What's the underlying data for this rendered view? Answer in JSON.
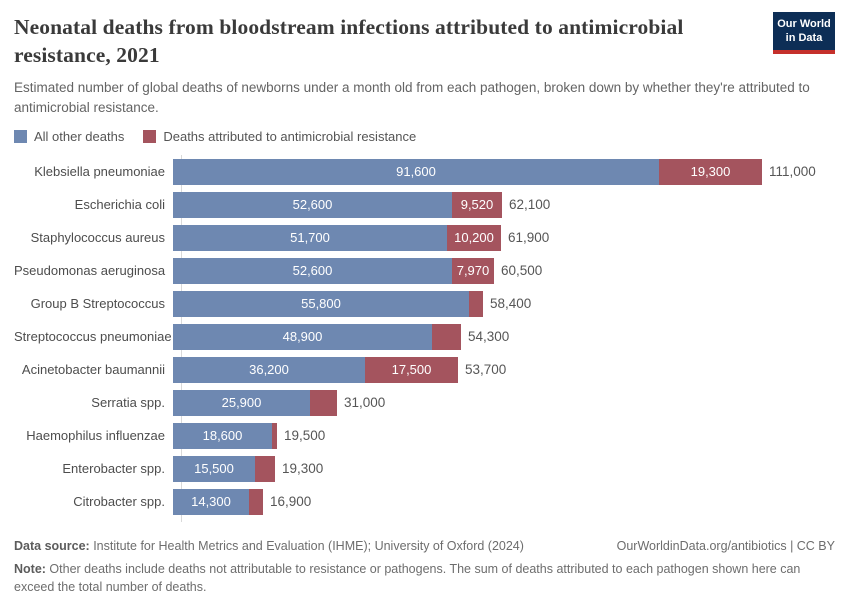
{
  "header": {
    "title": "Neonatal deaths from bloodstream infections attributed to antimicrobial resistance, 2021",
    "subtitle": "Estimated number of global deaths of newborns under a month old from each pathogen, broken down by whether they're attributed to antimicrobial resistance.",
    "logo": {
      "line1": "Our World",
      "line2": "in Data",
      "bg_color": "#0d2e56",
      "accent_color": "#c5302b"
    }
  },
  "legend": [
    {
      "label": "All other deaths",
      "color": "#6e88b1"
    },
    {
      "label": "Deaths attributed to antimicrobial resistance",
      "color": "#a4545e"
    }
  ],
  "chart_data": {
    "type": "bar",
    "orientation": "horizontal",
    "stacked": true,
    "title": "Neonatal deaths from bloodstream infections attributed to antimicrobial resistance, 2021",
    "xlabel": "",
    "ylabel": "",
    "xmax": 111000,
    "grid": false,
    "categories": [
      "Klebsiella pneumoniae",
      "Escherichia coli",
      "Staphylococcus aureus",
      "Pseudomonas aeruginosa",
      "Group B Streptococcus",
      "Streptococcus pneumoniae",
      "Acinetobacter baumannii",
      "Serratia spp.",
      "Haemophilus influenzae",
      "Enterobacter spp.",
      "Citrobacter spp."
    ],
    "series": [
      {
        "name": "All other deaths",
        "color": "#6e88b1",
        "values": [
          91600,
          52600,
          51700,
          52600,
          55800,
          48900,
          36200,
          25900,
          18600,
          15500,
          14300
        ],
        "labels": [
          "91,600",
          "52,600",
          "51,700",
          "52,600",
          "55,800",
          "48,900",
          "36,200",
          "25,900",
          "18,600",
          "15,500",
          "14,300"
        ]
      },
      {
        "name": "Deaths attributed to antimicrobial resistance",
        "color": "#a4545e",
        "values": [
          19300,
          9520,
          10200,
          7970,
          2600,
          5400,
          17500,
          5100,
          900,
          3800,
          2600
        ],
        "labels": [
          "19,300",
          "9,520",
          "10,200",
          "7,970",
          "",
          "",
          "17,500",
          "",
          "",
          "",
          ""
        ]
      }
    ],
    "totals": [
      111000,
      62100,
      61900,
      60500,
      58400,
      54300,
      53700,
      31000,
      19500,
      19300,
      16900
    ],
    "total_labels": [
      "111,000",
      "62,100",
      "61,900",
      "60,500",
      "58,400",
      "54,300",
      "53,700",
      "31,000",
      "19,500",
      "19,300",
      "16,900"
    ]
  },
  "footer": {
    "datasource_label": "Data source:",
    "datasource_text": " Institute for Health Metrics and Evaluation (IHME); University of Oxford (2024)",
    "citation": "OurWorldinData.org/antibiotics | CC BY",
    "note_label": "Note:",
    "note_text": " Other deaths include deaths not attributable to resistance or pathogens. The sum of deaths attributed to each pathogen shown here can exceed the total number of deaths."
  }
}
